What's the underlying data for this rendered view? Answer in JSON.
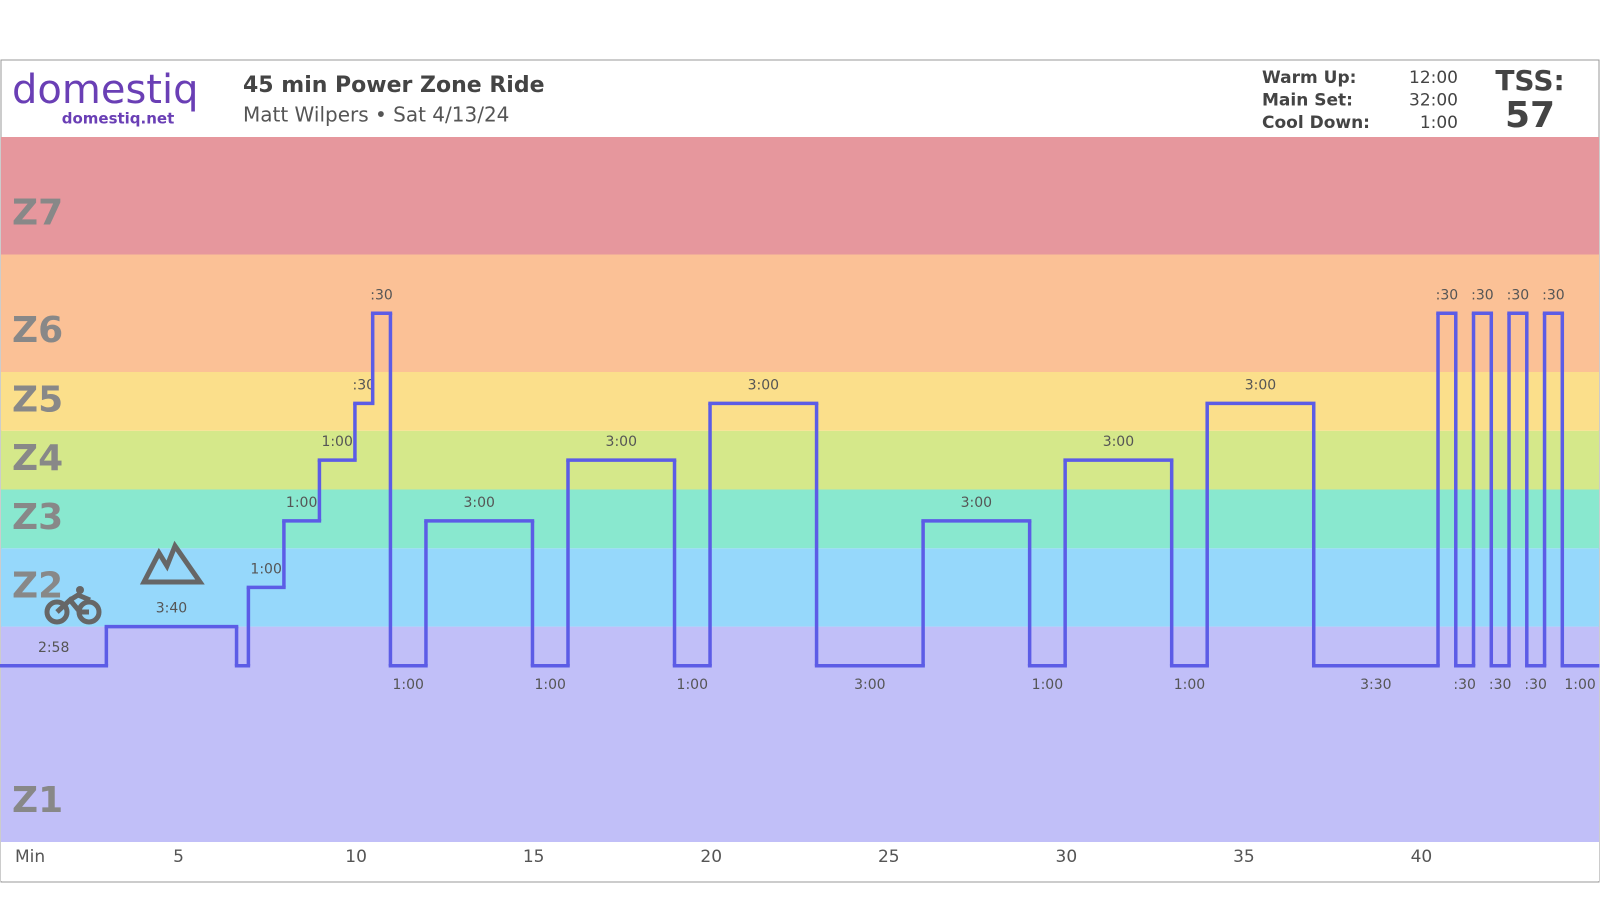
{
  "header": {
    "logo": "domestiq",
    "logo_url": "domestiq.net",
    "title": "45 min Power Zone Ride",
    "subtitle": "Matt Wilpers • Sat 4/13/24",
    "summary": [
      {
        "label": "Warm Up:",
        "value": "12:00"
      },
      {
        "label": "Main Set:",
        "value": "32:00"
      },
      {
        "label": "Cool Down:",
        "value": "1:00"
      }
    ],
    "tss_label": "TSS:",
    "tss": 57
  },
  "chart_data": {
    "type": "step",
    "x_label": "Min",
    "xlim": [
      0,
      45
    ],
    "xticks": [
      5,
      10,
      15,
      20,
      25,
      30,
      35,
      40
    ],
    "ylim": [
      0,
      180
    ],
    "color": "#5c5ce6",
    "zones": [
      {
        "name": "Z1",
        "range": [
          0,
          55
        ],
        "color": "#c1bff8"
      },
      {
        "name": "Z2",
        "range": [
          55,
          75
        ],
        "color": "#96d8fb"
      },
      {
        "name": "Z3",
        "range": [
          75,
          90
        ],
        "color": "#89e8cf"
      },
      {
        "name": "Z4",
        "range": [
          90,
          105
        ],
        "color": "#d5e88a"
      },
      {
        "name": "Z5",
        "range": [
          105,
          120
        ],
        "color": "#fbdf8b"
      },
      {
        "name": "Z6",
        "range": [
          120,
          150
        ],
        "color": "#fbc196"
      },
      {
        "name": "Z7",
        "range": [
          150,
          180
        ],
        "color": "#e6979d"
      }
    ],
    "segments": [
      {
        "duration": 2.9667,
        "label": "2:58",
        "power": 45
      },
      {
        "duration": 3.6667,
        "label": "3:40",
        "power": 55
      },
      {
        "duration": 0.3333,
        "label": null,
        "power": 45
      },
      {
        "duration": 1,
        "label": "1:00",
        "power": 65
      },
      {
        "duration": 1,
        "label": "1:00",
        "power": 82
      },
      {
        "duration": 1,
        "label": "1:00",
        "power": 97.5
      },
      {
        "duration": 0.5,
        "label": ":30",
        "power": 112
      },
      {
        "duration": 0.5,
        "label": ":30",
        "power": 135
      },
      {
        "duration": 1,
        "label": "1:00",
        "power": 45
      },
      {
        "duration": 3,
        "label": "3:00",
        "power": 82
      },
      {
        "duration": 1,
        "label": "1:00",
        "power": 45
      },
      {
        "duration": 3,
        "label": "3:00",
        "power": 97.5
      },
      {
        "duration": 1,
        "label": "1:00",
        "power": 45
      },
      {
        "duration": 3,
        "label": "3:00",
        "power": 112
      },
      {
        "duration": 3,
        "label": "3:00",
        "power": 45
      },
      {
        "duration": 3,
        "label": "3:00",
        "power": 82
      },
      {
        "duration": 1,
        "label": "1:00",
        "power": 45
      },
      {
        "duration": 3,
        "label": "3:00",
        "power": 97.5
      },
      {
        "duration": 1,
        "label": "1:00",
        "power": 45
      },
      {
        "duration": 3,
        "label": "3:00",
        "power": 112
      },
      {
        "duration": 3.5,
        "label": "3:30",
        "power": 45
      },
      {
        "duration": 0.5,
        "label": ":30",
        "power": 135
      },
      {
        "duration": 0.5,
        "label": ":30",
        "power": 45
      },
      {
        "duration": 0.5,
        "label": ":30",
        "power": 135
      },
      {
        "duration": 0.5,
        "label": ":30",
        "power": 45
      },
      {
        "duration": 0.5,
        "label": ":30",
        "power": 135
      },
      {
        "duration": 0.5,
        "label": ":30",
        "power": 45
      },
      {
        "duration": 0.5,
        "label": ":30",
        "power": 135
      },
      {
        "duration": 1,
        "label": "1:00",
        "power": 45
      }
    ]
  }
}
